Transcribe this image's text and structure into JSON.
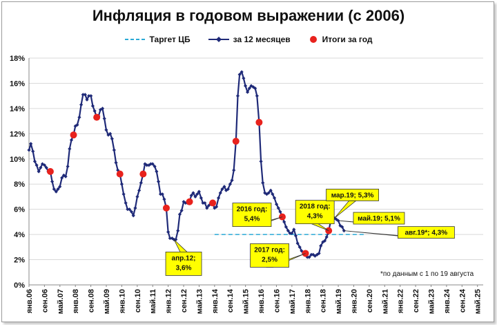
{
  "chart_data": {
    "type": "line",
    "title": "Инфляция в годовом выражении (с 2006)",
    "yticks": [
      "0%",
      "2%",
      "4%",
      "6%",
      "8%",
      "10%",
      "12%",
      "14%",
      "16%",
      "18%"
    ],
    "ylim": [
      0,
      18
    ],
    "xticks": [
      "янв.06",
      "сен.06",
      "май.07",
      "янв.08",
      "сен.08",
      "май.09",
      "янв.10",
      "сен.10",
      "май.11",
      "янв.12",
      "сен.12",
      "май.13",
      "янв.14",
      "сен.14",
      "май.15",
      "янв.16",
      "сен.16",
      "май.17",
      "янв.18",
      "сен.18",
      "май.19",
      "янв.20",
      "сен.20",
      "май.21",
      "янв.22",
      "сен.22",
      "май.23",
      "янв.24",
      "сен.24",
      "май.25"
    ],
    "legend": {
      "target": "Таргет ЦБ",
      "series": "за 12 месяцев",
      "annual": "Итоги за год"
    },
    "target": {
      "value": 4,
      "x_from": 2014.0,
      "x_to": 2020.5
    },
    "series": [
      {
        "name": "за 12 месяцев",
        "x": [
          2006.0,
          2006.08,
          2006.17,
          2006.25,
          2006.33,
          2006.42,
          2006.5,
          2006.58,
          2006.67,
          2006.75,
          2006.83,
          2006.92,
          2007.0,
          2007.08,
          2007.17,
          2007.25,
          2007.33,
          2007.42,
          2007.5,
          2007.58,
          2007.67,
          2007.75,
          2007.83,
          2007.92,
          2008.0,
          2008.08,
          2008.17,
          2008.25,
          2008.33,
          2008.42,
          2008.5,
          2008.58,
          2008.67,
          2008.75,
          2008.83,
          2008.92,
          2009.0,
          2009.08,
          2009.17,
          2009.25,
          2009.33,
          2009.42,
          2009.5,
          2009.58,
          2009.67,
          2009.75,
          2009.83,
          2009.92,
          2010.0,
          2010.08,
          2010.17,
          2010.25,
          2010.33,
          2010.42,
          2010.5,
          2010.58,
          2010.67,
          2010.75,
          2010.83,
          2010.92,
          2011.0,
          2011.08,
          2011.17,
          2011.25,
          2011.33,
          2011.42,
          2011.5,
          2011.58,
          2011.67,
          2011.75,
          2011.83,
          2011.92,
          2012.0,
          2012.08,
          2012.17,
          2012.25,
          2012.33,
          2012.42,
          2012.5,
          2012.58,
          2012.67,
          2012.75,
          2012.83,
          2012.92,
          2013.0,
          2013.08,
          2013.17,
          2013.25,
          2013.33,
          2013.42,
          2013.5,
          2013.58,
          2013.67,
          2013.75,
          2013.83,
          2013.92,
          2014.0,
          2014.08,
          2014.17,
          2014.25,
          2014.33,
          2014.42,
          2014.5,
          2014.58,
          2014.67,
          2014.75,
          2014.83,
          2014.92,
          2015.0,
          2015.08,
          2015.17,
          2015.25,
          2015.33,
          2015.42,
          2015.5,
          2015.58,
          2015.67,
          2015.75,
          2015.83,
          2015.92,
          2016.0,
          2016.08,
          2016.17,
          2016.25,
          2016.33,
          2016.42,
          2016.5,
          2016.58,
          2016.67,
          2016.75,
          2016.83,
          2016.92,
          2017.0,
          2017.08,
          2017.17,
          2017.25,
          2017.33,
          2017.42,
          2017.5,
          2017.58,
          2017.67,
          2017.75,
          2017.83,
          2017.92,
          2018.0,
          2018.08,
          2018.17,
          2018.25,
          2018.33,
          2018.42,
          2018.5,
          2018.58,
          2018.67,
          2018.75,
          2018.83,
          2018.92,
          2019.0,
          2019.08,
          2019.17,
          2019.25,
          2019.33,
          2019.42,
          2019.5,
          2019.58
        ],
        "values": [
          10.7,
          11.2,
          10.6,
          9.8,
          9.5,
          9.0,
          9.3,
          9.6,
          9.5,
          9.3,
          9.0,
          9.0,
          8.2,
          7.6,
          7.4,
          7.6,
          7.8,
          8.5,
          8.7,
          8.6,
          9.4,
          10.8,
          11.5,
          11.9,
          12.6,
          12.7,
          13.3,
          14.3,
          15.1,
          15.1,
          14.7,
          15.0,
          15.0,
          14.2,
          13.8,
          13.3,
          13.4,
          13.9,
          14.0,
          13.2,
          12.3,
          11.9,
          12.0,
          11.6,
          10.7,
          9.7,
          9.1,
          8.8,
          8.0,
          7.2,
          6.5,
          6.0,
          6.0,
          5.8,
          5.5,
          6.1,
          7.0,
          7.5,
          8.1,
          8.8,
          9.6,
          9.5,
          9.5,
          9.6,
          9.6,
          9.4,
          9.0,
          8.2,
          7.2,
          7.2,
          6.8,
          6.1,
          4.2,
          3.7,
          3.7,
          3.6,
          3.6,
          4.3,
          5.6,
          5.9,
          6.6,
          6.5,
          6.5,
          6.6,
          7.1,
          7.3,
          7.0,
          7.2,
          7.4,
          6.9,
          6.5,
          6.5,
          6.1,
          6.3,
          6.5,
          6.5,
          6.1,
          6.2,
          6.9,
          7.3,
          7.6,
          7.8,
          7.5,
          7.6,
          8.0,
          8.3,
          9.1,
          11.4,
          15.0,
          16.7,
          16.9,
          16.4,
          15.8,
          15.3,
          15.6,
          15.8,
          15.7,
          15.6,
          15.0,
          12.9,
          9.8,
          8.1,
          7.3,
          7.2,
          7.3,
          7.5,
          7.2,
          6.9,
          6.4,
          6.1,
          5.8,
          5.4,
          5.0,
          4.6,
          4.3,
          4.1,
          4.1,
          4.4,
          3.9,
          3.3,
          3.0,
          2.7,
          2.5,
          2.5,
          2.2,
          2.2,
          2.4,
          2.4,
          2.3,
          2.4,
          2.5,
          3.1,
          3.4,
          3.5,
          3.8,
          4.3,
          5.0,
          5.2,
          5.3,
          5.2,
          5.1,
          4.7,
          4.6,
          4.3
        ]
      }
    ],
    "annual": [
      {
        "x": 2006.92,
        "y": 9.0
      },
      {
        "x": 2007.92,
        "y": 11.9
      },
      {
        "x": 2008.92,
        "y": 13.3
      },
      {
        "x": 2009.92,
        "y": 8.8
      },
      {
        "x": 2010.92,
        "y": 8.8
      },
      {
        "x": 2011.92,
        "y": 6.1
      },
      {
        "x": 2012.92,
        "y": 6.6
      },
      {
        "x": 2013.92,
        "y": 6.5
      },
      {
        "x": 2014.92,
        "y": 11.4
      },
      {
        "x": 2015.92,
        "y": 12.9
      },
      {
        "x": 2016.92,
        "y": 5.4
      },
      {
        "x": 2017.92,
        "y": 2.5
      },
      {
        "x": 2018.92,
        "y": 4.3
      }
    ],
    "annotations": [
      {
        "text": "апр.12;\n3,6%",
        "x": 2012.25,
        "y": 3.6
      },
      {
        "text": "2016 год:\n5,4%",
        "x": 2016.92,
        "y": 5.4
      },
      {
        "text": "2017 год:\n2,5%",
        "x": 2017.92,
        "y": 2.5
      },
      {
        "text": "2018 год:\n4,3%",
        "x": 2018.92,
        "y": 4.3
      },
      {
        "text": "мар.19; 5,3%",
        "x": 2019.17,
        "y": 5.3
      },
      {
        "text": "май.19; 5,1%",
        "x": 2019.33,
        "y": 5.1
      },
      {
        "text": "авг.19*; 4,3%",
        "x": 2019.58,
        "y": 4.3
      }
    ],
    "note": "*по данным с 1 по 19 августа",
    "colors": {
      "line": "#1f2a78",
      "target": "#29a9d6",
      "dot": "#e8221d",
      "callout": "#ffff00"
    }
  }
}
